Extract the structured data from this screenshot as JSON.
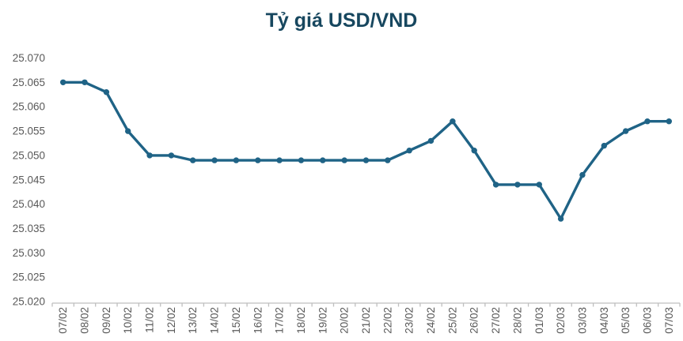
{
  "chart_data": {
    "type": "line",
    "title": "Tỷ giá USD/VND",
    "xlabel": "",
    "ylabel": "",
    "categories": [
      "07/02",
      "08/02",
      "09/02",
      "10/02",
      "11/02",
      "12/02",
      "13/02",
      "14/02",
      "15/02",
      "16/02",
      "17/02",
      "18/02",
      "19/02",
      "20/02",
      "21/02",
      "22/02",
      "23/02",
      "24/02",
      "25/02",
      "26/02",
      "27/02",
      "28/02",
      "01/03",
      "02/03",
      "03/03",
      "04/03",
      "05/03",
      "06/03",
      "07/03"
    ],
    "series": [
      {
        "name": "Tỷ giá USD/VND",
        "values": [
          25065,
          25065,
          25063,
          25055,
          25050,
          25050,
          25049,
          25049,
          25049,
          25049,
          25049,
          25049,
          25049,
          25049,
          25049,
          25049,
          25051,
          25053,
          25057,
          25051,
          25044,
          25044,
          25044,
          25037,
          25046,
          25052,
          25055,
          25057,
          25057
        ]
      }
    ],
    "ylim": [
      25020,
      25070
    ],
    "y_step": 5,
    "y_tick_labels": [
      "25.070",
      "25.065",
      "25.060",
      "25.055",
      "25.050",
      "25.045",
      "25.040",
      "25.035",
      "25.030",
      "25.025",
      "25.020"
    ],
    "grid": false,
    "legend": "none",
    "marker": "circle",
    "colors": {
      "line": "#1F6386",
      "title": "#17475F",
      "axis_text": "#595959",
      "axis_line": "#BFBFBF",
      "background": "#FFFFFF"
    }
  }
}
